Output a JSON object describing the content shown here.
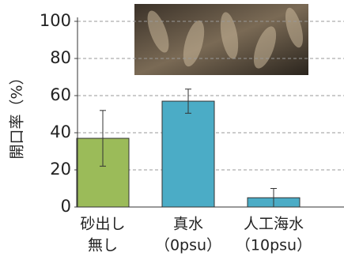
{
  "chart_data": {
    "type": "bar",
    "y_label": "開口率（%）",
    "categories": [
      [
        "砂出し",
        "無し"
      ],
      [
        "真水",
        "（0psu）"
      ],
      [
        "人工海水",
        "（10psu）"
      ]
    ],
    "values": [
      37,
      57,
      5
    ],
    "errors": [
      15,
      6.5,
      5
    ],
    "colors": [
      "#9bbb59",
      "#4bacc6",
      "#4bacc6"
    ],
    "ylim": [
      0,
      100
    ],
    "yticks": [
      0,
      20,
      40,
      60,
      80,
      100
    ],
    "grid": true
  }
}
